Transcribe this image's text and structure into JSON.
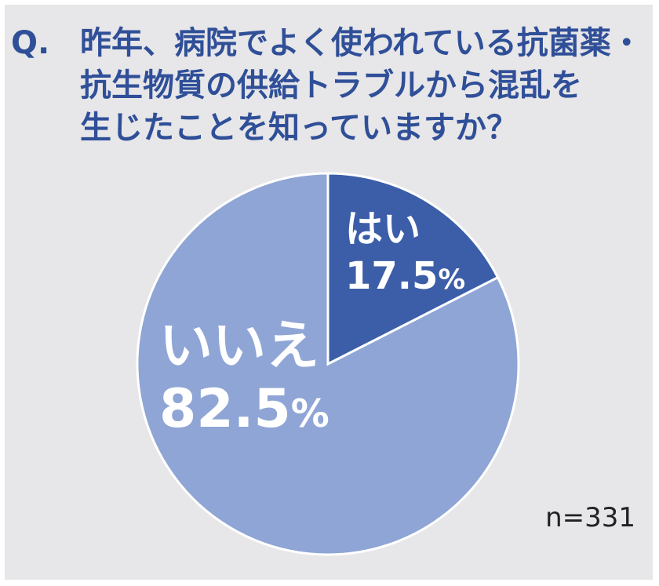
{
  "question": {
    "prefix": "Q.",
    "lines": [
      "昨年、病院でよく使われている抗菌薬・",
      "抗生物質の供給トラブルから混乱を",
      "生じたことを知っていますか？"
    ]
  },
  "chart_data": {
    "type": "pie",
    "slices": [
      {
        "label": "はい",
        "value": 17.5,
        "value_text": "17.5",
        "percent_sign": "%",
        "color": "#3c5ea8"
      },
      {
        "label": "いいえ",
        "value": 82.5,
        "value_text": "82.5",
        "percent_sign": "%",
        "color": "#8fa5d5"
      }
    ],
    "start_angle": "12 o'clock, clockwise",
    "sample_size": "n=331"
  },
  "colors": {
    "background": "#e7e6e8",
    "title": "#2f4f98",
    "label_text": "#ffffff"
  }
}
